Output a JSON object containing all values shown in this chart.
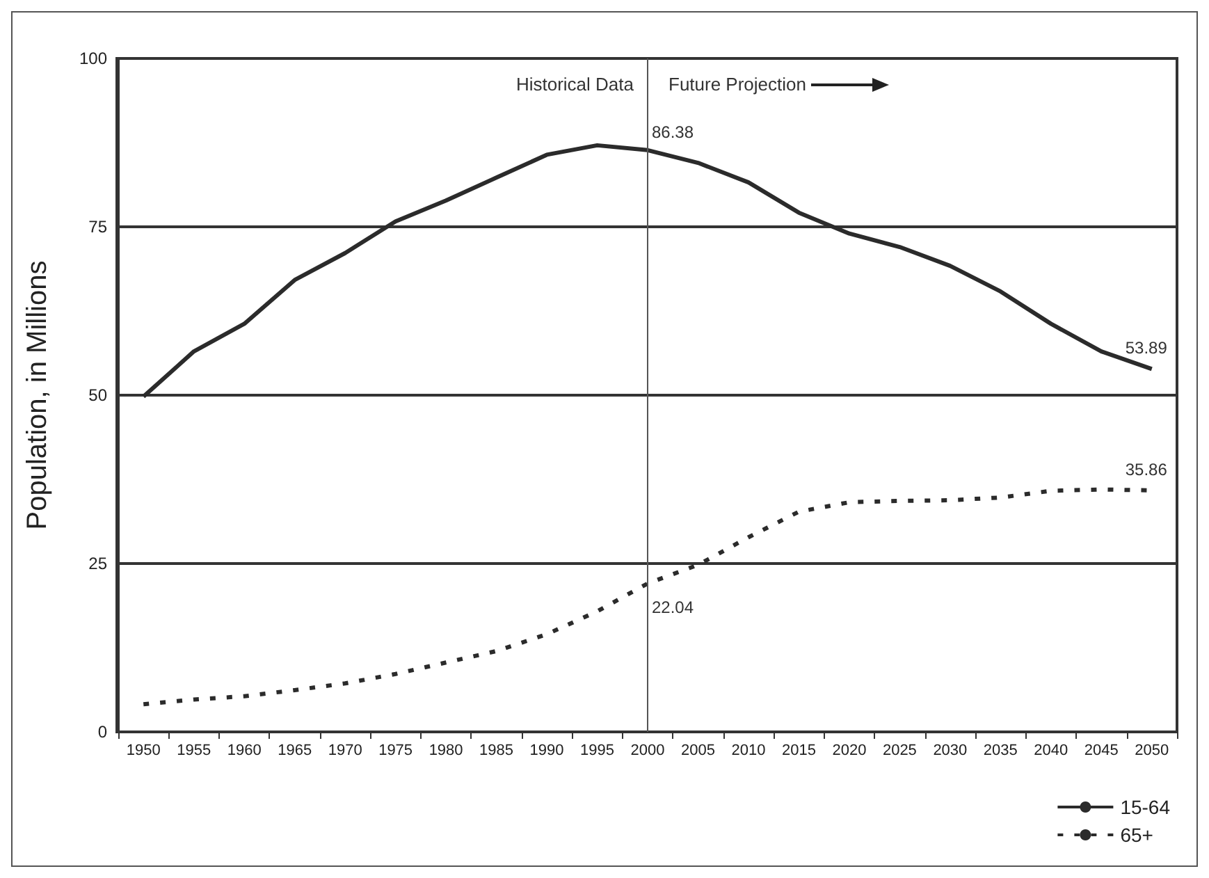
{
  "chart_data": {
    "type": "line",
    "categories": [
      "1950",
      "1955",
      "1960",
      "1965",
      "1970",
      "1975",
      "1980",
      "1985",
      "1990",
      "1995",
      "2000",
      "2005",
      "2010",
      "2015",
      "2020",
      "2025",
      "2030",
      "2035",
      "2040",
      "2045",
      "2050"
    ],
    "series": [
      {
        "name": "15-64",
        "color": "#2b2b2b",
        "line_style": "solid",
        "values": [
          49.8,
          56.5,
          60.6,
          67.1,
          71.1,
          75.8,
          78.9,
          82.3,
          85.7,
          87.1,
          86.38,
          84.5,
          81.6,
          77.1,
          74.0,
          72.0,
          69.2,
          65.4,
          60.6,
          56.5,
          53.89
        ],
        "value_labels": [
          null,
          null,
          null,
          null,
          null,
          null,
          null,
          null,
          null,
          null,
          "86.38",
          null,
          null,
          null,
          null,
          null,
          null,
          null,
          null,
          null,
          "53.89"
        ]
      },
      {
        "name": "65+",
        "color": "#2b2b2b",
        "line_style": "dashed",
        "values": [
          4.1,
          4.8,
          5.3,
          6.2,
          7.2,
          8.6,
          10.3,
          12.0,
          14.5,
          17.9,
          22.04,
          24.8,
          28.9,
          32.7,
          34.1,
          34.3,
          34.4,
          34.8,
          35.8,
          36.0,
          35.86
        ],
        "value_labels": [
          null,
          null,
          null,
          null,
          null,
          null,
          null,
          null,
          null,
          null,
          "22.04",
          null,
          null,
          null,
          null,
          null,
          null,
          null,
          null,
          null,
          "35.86"
        ]
      }
    ],
    "ylabel": "Population, in Millions",
    "ylim": [
      0,
      100
    ],
    "yticks": [
      0,
      25,
      50,
      75,
      100
    ],
    "grid": "y",
    "legend": "bottom right",
    "marker": "none",
    "ref_lines": [
      {
        "axis": "x",
        "value": "2000",
        "color": "#555555"
      }
    ],
    "annotations": [
      "Historical Data",
      "Future Projection"
    ]
  }
}
